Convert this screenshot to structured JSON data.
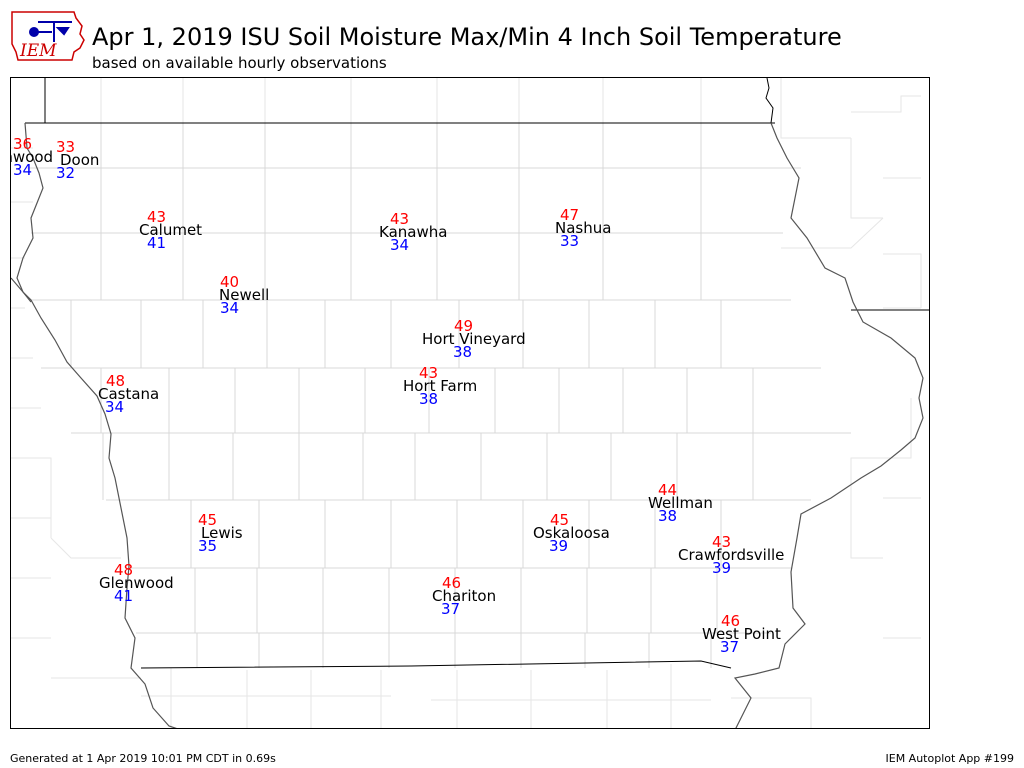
{
  "header": {
    "logo_text": "IEM",
    "title": "Apr 1, 2019 ISU Soil Moisture Max/Min 4 Inch Soil Temperature",
    "subtitle": "based on available hourly observations"
  },
  "colors": {
    "max": "#ff0000",
    "min": "#0000ff",
    "name": "#000000",
    "logo": "#cc0000",
    "logo_icon": "#0000aa"
  },
  "stations": [
    {
      "id": "inwood",
      "name": "Inwood",
      "max": "36",
      "min": "34"
    },
    {
      "id": "doon",
      "name": "Doon",
      "max": "33",
      "min": "32"
    },
    {
      "id": "calumet",
      "name": "Calumet",
      "max": "43",
      "min": "41"
    },
    {
      "id": "kanawha",
      "name": "Kanawha",
      "max": "43",
      "min": "34"
    },
    {
      "id": "nashua",
      "name": "Nashua",
      "max": "47",
      "min": "33"
    },
    {
      "id": "newell",
      "name": "Newell",
      "max": "40",
      "min": "34"
    },
    {
      "id": "hort-vineyard",
      "name": "Hort Vineyard",
      "max": "49",
      "min": "38"
    },
    {
      "id": "castana",
      "name": "Castana",
      "max": "48",
      "min": "34"
    },
    {
      "id": "hort-farm",
      "name": "Hort Farm",
      "max": "43",
      "min": "38"
    },
    {
      "id": "wellman",
      "name": "Wellman",
      "max": "44",
      "min": "38"
    },
    {
      "id": "lewis",
      "name": "Lewis",
      "max": "45",
      "min": "35"
    },
    {
      "id": "oskaloosa",
      "name": "Oskaloosa",
      "max": "45",
      "min": "39"
    },
    {
      "id": "crawfordsville",
      "name": "Crawfordsville",
      "max": "43",
      "min": "39"
    },
    {
      "id": "glenwood",
      "name": "Glenwood",
      "max": "48",
      "min": "41"
    },
    {
      "id": "chariton",
      "name": "Chariton",
      "max": "46",
      "min": "37"
    },
    {
      "id": "west-point",
      "name": "West Point",
      "max": "46",
      "min": "37"
    }
  ],
  "footer": {
    "generated": "Generated at 1 Apr 2019 10:01 PM CDT in 0.69s",
    "app": "IEM Autoplot App #199"
  }
}
